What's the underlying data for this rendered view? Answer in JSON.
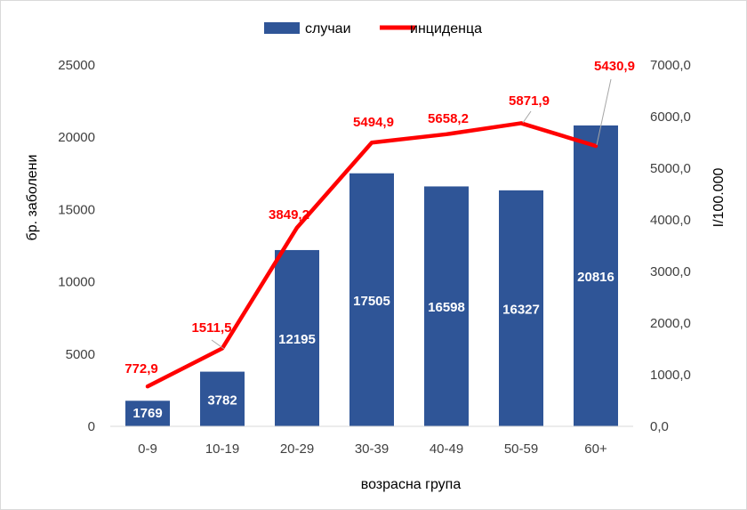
{
  "chart_data": {
    "type": "bar",
    "categories": [
      "0-9",
      "10-19",
      "20-29",
      "30-39",
      "40-49",
      "50-59",
      "60+"
    ],
    "series": [
      {
        "name": "случаи",
        "type": "bar",
        "axis": "left",
        "color": "#2f5597",
        "values": [
          1769,
          3782,
          12195,
          17505,
          16598,
          16327,
          20816
        ],
        "labels": [
          "1769",
          "3782",
          "12195",
          "17505",
          "16598",
          "16327",
          "20816"
        ]
      },
      {
        "name": "инциденца",
        "type": "line",
        "axis": "right",
        "color": "#ff0000",
        "values": [
          772.9,
          1511.5,
          3849.2,
          5494.9,
          5658.2,
          5871.9,
          5430.9
        ],
        "labels": [
          "772,9",
          "1511,5",
          "3849,2",
          "5494,9",
          "5658,2",
          "5871,9",
          "5430,9"
        ]
      }
    ],
    "xlabel": "возрасна група",
    "ylabel": "бр. заболени",
    "y2label": "I/100.000",
    "ylim": [
      0,
      25000
    ],
    "y2lim": [
      0,
      7000
    ],
    "yticks": [
      "0",
      "5000",
      "10000",
      "15000",
      "20000",
      "25000"
    ],
    "y2ticks": [
      "0,0",
      "1000,0",
      "2000,0",
      "3000,0",
      "4000,0",
      "5000,0",
      "6000,0",
      "7000,0"
    ],
    "grid": false,
    "legend": "top-center",
    "leader_color": "#a6a6a6"
  }
}
